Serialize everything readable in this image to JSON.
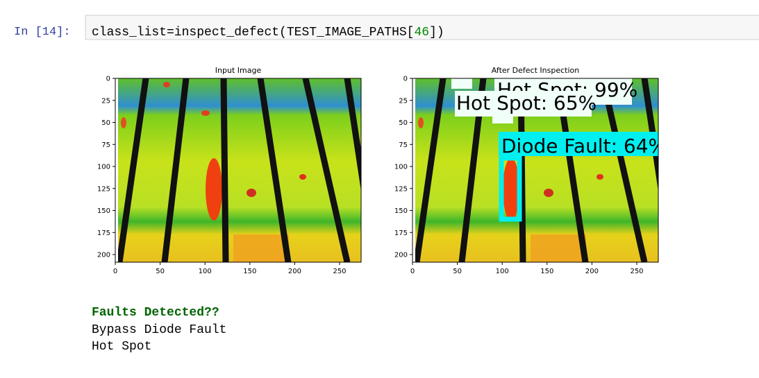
{
  "cell": {
    "prompt": "In [14]:",
    "code_before": "class_list=inspect_defect(TEST_IMAGE_PATHS[",
    "code_number": "46",
    "code_after": "])"
  },
  "figures": [
    {
      "title": "Input Image",
      "xticks": [
        0,
        50,
        100,
        150,
        200,
        250
      ],
      "yticks": [
        0,
        25,
        50,
        75,
        100,
        125,
        150,
        175,
        200
      ]
    },
    {
      "title": "After Defect Inspection",
      "xticks": [
        0,
        50,
        100,
        150,
        200,
        250
      ],
      "yticks": [
        0,
        25,
        50,
        75,
        100,
        125,
        150,
        175,
        200
      ],
      "detections": [
        "Hot Spot: 99%",
        "Hot Spot: 65%",
        "Diode Fault: 64%"
      ]
    }
  ],
  "output": {
    "heading": "Faults Detected??",
    "lines": [
      "Bypass Diode Fault",
      "Hot Spot"
    ]
  }
}
